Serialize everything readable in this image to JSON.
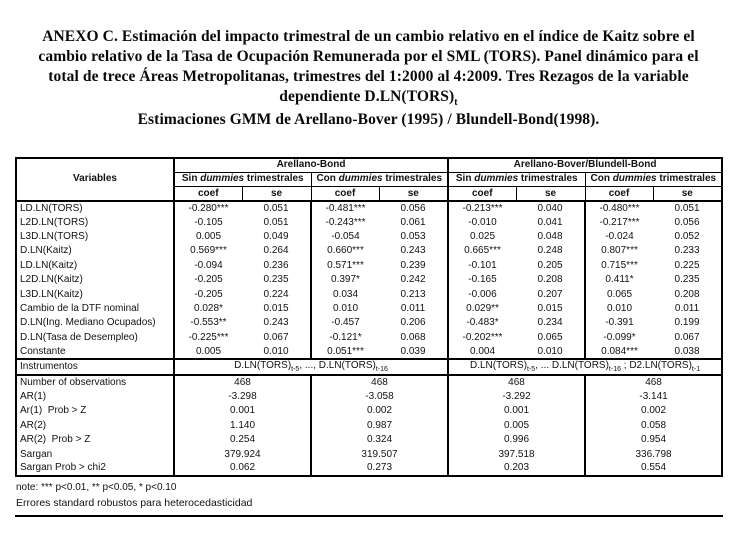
{
  "page": {
    "title_part1": "ANEXO C. Estimación del impacto trimestral de un cambio relativo en el índice de Kaitz sobre el cambio relativo de la Tasa de Ocupación Remunerada por el SML (TORS). Panel dinámico para el total de trece Áreas Metropolitanas, trimestres del 1:2000 al 4:2009. Tres Rezagos de la variable dependiente D.LN(TORS)",
    "title_subscript": "t",
    "title_part2": "Estimaciones GMM de Arellano-Bover (1995) / Blundell-Bond(1998).",
    "note_line1": "note:  *** p<0.01, ** p<0.05, * p<0.10",
    "note_line2": "Errores standard robustos para heterocedasticidad"
  },
  "table": {
    "variables_header": "Variables",
    "group_headers": [
      "Arellano-Bond",
      "Arellano-Bover/Blundell-Bond"
    ],
    "subgroup_headers": [
      {
        "prefix": "Sin ",
        "italic": "dummies",
        "suffix": " trimestrales"
      },
      {
        "prefix": "Con ",
        "italic": "dummies",
        "suffix": " trimestrales"
      },
      {
        "prefix": "Sin ",
        "italic": "dummies",
        "suffix": " trimestrales"
      },
      {
        "prefix": "Con ",
        "italic": "dummies",
        "suffix": " trimestrales"
      }
    ],
    "stat_col_headers": [
      "coef",
      "se",
      "coef",
      "se",
      "coef",
      "se",
      "coef",
      "se"
    ],
    "rows": [
      {
        "variable": "LD.LN(TORS)",
        "values": [
          "-0.280***",
          "0.051",
          "-0.481***",
          "0.056",
          "-0.213***",
          "0.040",
          "-0.480***",
          "0.051"
        ]
      },
      {
        "variable": "L2D.LN(TORS)",
        "values": [
          "-0.105",
          "0.051",
          "-0.243***",
          "0.061",
          "-0.010",
          "0.041",
          "-0.217***",
          "0.056"
        ]
      },
      {
        "variable": "L3D.LN(TORS)",
        "values": [
          "0.005",
          "0.049",
          "-0.054",
          "0.053",
          "0.025",
          "0.048",
          "-0.024",
          "0.052"
        ]
      },
      {
        "variable": "D.LN(Kaitz)",
        "values": [
          "0.569***",
          "0.264",
          "0.660***",
          "0.243",
          "0.665***",
          "0.248",
          "0.807***",
          "0.233"
        ]
      },
      {
        "variable": "LD.LN(Kaitz)",
        "values": [
          "-0.094",
          "0.236",
          "0.571***",
          "0.239",
          "-0.101",
          "0.205",
          "0.715***",
          "0.225"
        ]
      },
      {
        "variable": "L2D.LN(Kaitz)",
        "values": [
          "-0.205",
          "0.235",
          "0.397*",
          "0.242",
          "-0.165",
          "0.208",
          "0.411*",
          "0.235"
        ]
      },
      {
        "variable": "L3D.LN(Kaitz)",
        "values": [
          "-0.205",
          "0.224",
          "0.034",
          "0.213",
          "-0.006",
          "0.207",
          "0.065",
          "0.208"
        ]
      },
      {
        "variable": "Cambio de la DTF nominal",
        "values": [
          "0.028*",
          "0.015",
          "0.010",
          "0.011",
          "0.029**",
          "0.015",
          "0.010",
          "0.011"
        ]
      },
      {
        "variable": "D.LN(Ing. Mediano Ocupados)",
        "values": [
          "-0.553**",
          "0.243",
          "-0.457",
          "0.206",
          "-0.483*",
          "0.234",
          "-0.391",
          "0.199"
        ]
      },
      {
        "variable": "D.LN(Tasa de Desempleo)",
        "values": [
          "-0.225***",
          "0.067",
          "-0.121*",
          "0.068",
          "-0.202***",
          "0.065",
          "-0.099*",
          "0.067"
        ]
      },
      {
        "variable": "Constante",
        "values": [
          "0.005",
          "0.010",
          "0.051***",
          "0.039",
          "0.004",
          "0.010",
          "0.084***",
          "0.038"
        ]
      }
    ],
    "instruments": {
      "label": "Instrumentos",
      "left": {
        "p1": "D.LN(TORS)",
        "s1": "t-5",
        "p2": ", ..., D.LN(TORS)",
        "s2": "t-16"
      },
      "right": {
        "p1": "D.LN(TORS)",
        "s1": "t-5",
        "p2": ", ... D.LN(TORS)",
        "s2": "t-16",
        "p3": " ; D2.LN(TORS)",
        "s3": "t-1"
      }
    },
    "stats": [
      {
        "label": "Number of observations",
        "values": [
          "468",
          "468",
          "468",
          "468"
        ]
      },
      {
        "label": "AR(1)",
        "values": [
          "-3.298",
          "-3.058",
          "-3.292",
          "-3.141"
        ]
      },
      {
        "label": "Ar(1)  Prob > Z",
        "values": [
          "0.001",
          "0.002",
          "0.001",
          "0.002"
        ]
      },
      {
        "label": "AR(2)",
        "values": [
          "1.140",
          "0.987",
          "0.005",
          "0.058"
        ]
      },
      {
        "label": "AR(2)  Prob > Z",
        "values": [
          "0.254",
          "0.324",
          "0.996",
          "0.954"
        ]
      },
      {
        "label": "Sargan",
        "values": [
          "379.924",
          "319.507",
          "397.518",
          "336.798"
        ]
      },
      {
        "label": "Sargan Prob > chi2",
        "values": [
          "0.062",
          "0.273",
          "0.203",
          "0.554"
        ]
      }
    ]
  },
  "colors": {
    "background": "#ffffff",
    "text": "#000000",
    "border": "#000000"
  }
}
